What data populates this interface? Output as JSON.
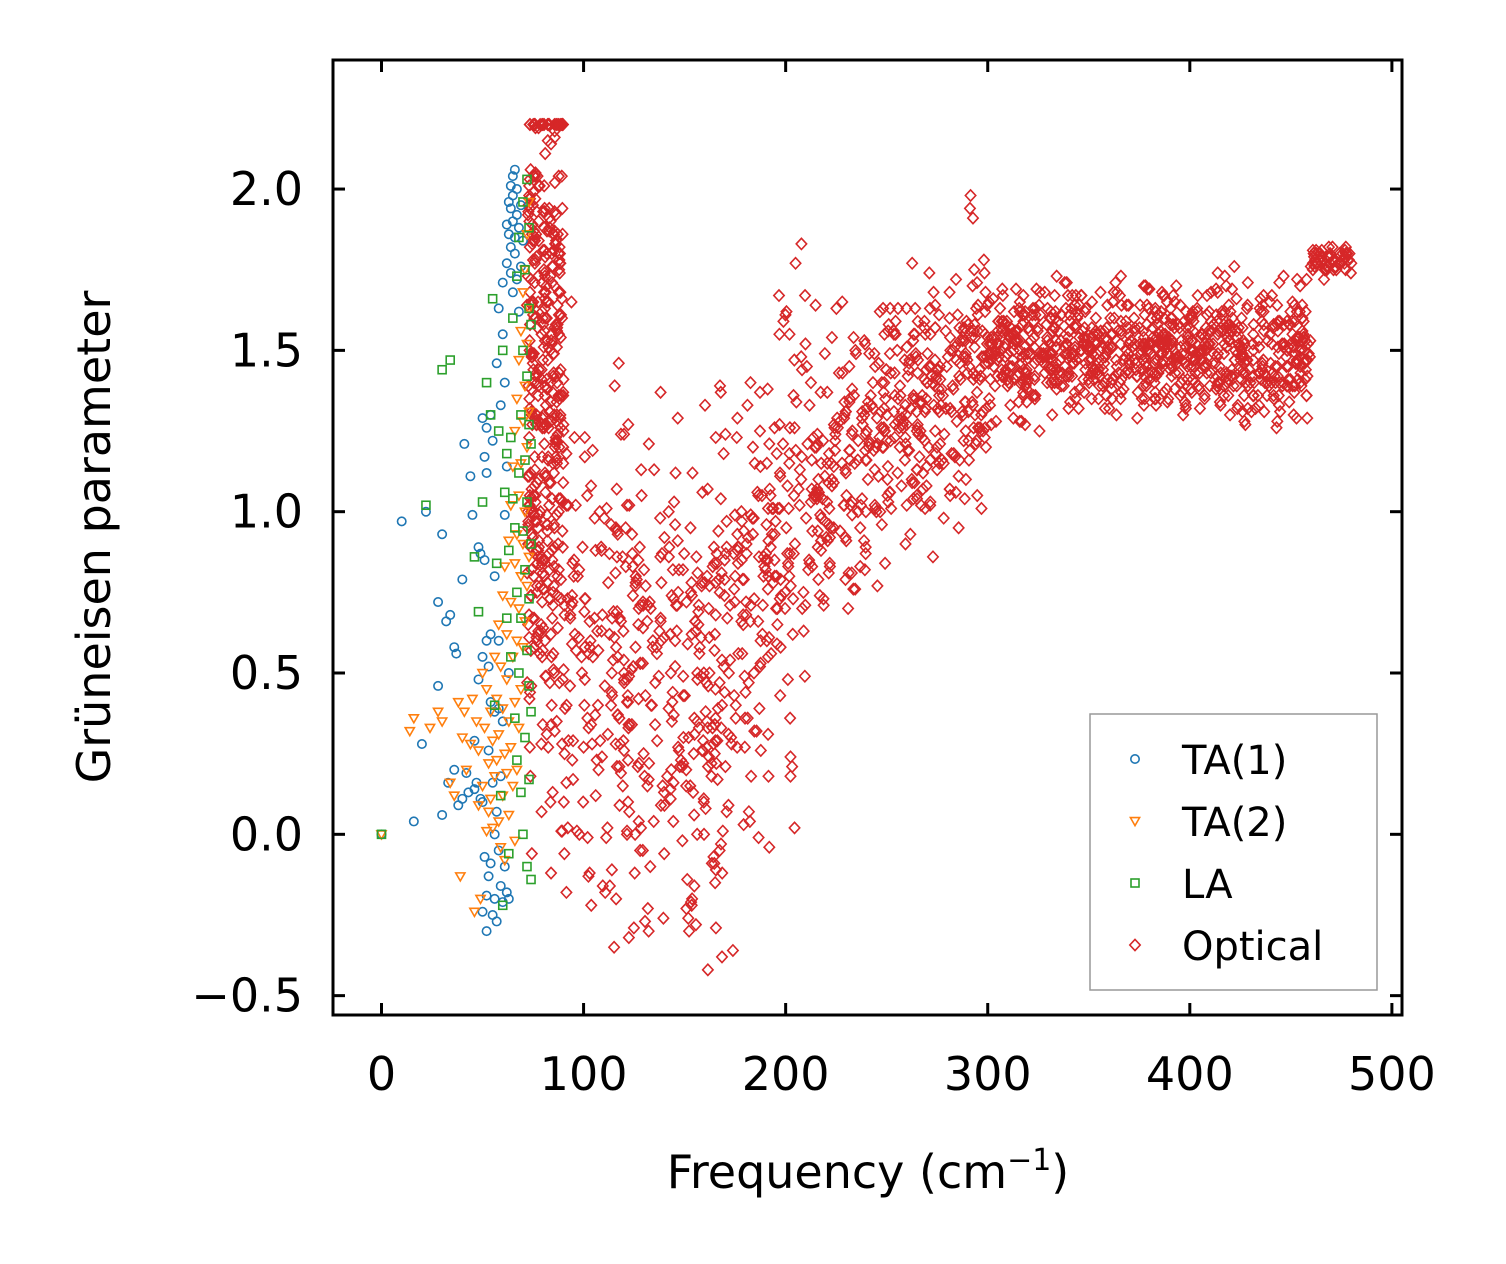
{
  "chart_data": {
    "type": "scatter",
    "title": "",
    "xlabel": "Frequency (cm",
    "xlabel_sup": "−1",
    "xlabel_close": ")",
    "ylabel": "Grüneisen parameter",
    "xlim": [
      -24,
      505
    ],
    "ylim": [
      -0.56,
      2.4
    ],
    "xticks": [
      0,
      100,
      200,
      300,
      400,
      500
    ],
    "xtick_labels": [
      "0",
      "100",
      "200",
      "300",
      "400",
      "500"
    ],
    "yticks": [
      -0.5,
      0.0,
      0.5,
      1.0,
      1.5,
      2.0
    ],
    "ytick_labels": [
      "−0.5",
      "0.0",
      "0.5",
      "1.0",
      "1.5",
      "2.0"
    ],
    "grid": false,
    "legend_position": "lower-right",
    "series": [
      {
        "name": "TA(1)",
        "marker": "circle",
        "color": "#1f77b4",
        "points": [
          [
            0,
            0.0
          ],
          [
            10,
            0.97
          ],
          [
            16,
            0.04
          ],
          [
            20,
            0.28
          ],
          [
            22,
            1.0
          ],
          [
            28,
            0.46
          ],
          [
            28,
            0.72
          ],
          [
            30,
            0.93
          ],
          [
            30,
            0.06
          ],
          [
            32,
            0.66
          ],
          [
            33,
            0.16
          ],
          [
            34,
            0.68
          ],
          [
            36,
            0.58
          ],
          [
            36,
            0.2
          ],
          [
            37,
            0.56
          ],
          [
            38,
            0.09
          ],
          [
            40,
            0.79
          ],
          [
            40,
            0.11
          ],
          [
            41,
            1.21
          ],
          [
            42,
            0.19
          ],
          [
            43,
            0.13
          ],
          [
            44,
            1.11
          ],
          [
            45,
            0.99
          ],
          [
            46,
            0.14
          ],
          [
            46,
            0.29
          ],
          [
            47,
            0.16
          ],
          [
            48,
            0.89
          ],
          [
            48,
            0.48
          ],
          [
            49,
            0.11
          ],
          [
            49,
            0.87
          ],
          [
            50,
            0.1
          ],
          [
            50,
            0.55
          ],
          [
            50,
            1.29
          ],
          [
            50,
            -0.24
          ],
          [
            51,
            1.17
          ],
          [
            51,
            0.85
          ],
          [
            51,
            -0.07
          ],
          [
            52,
            0.6
          ],
          [
            52,
            1.12
          ],
          [
            52,
            1.26
          ],
          [
            52,
            -0.3
          ],
          [
            52,
            -0.19
          ],
          [
            53,
            0.52
          ],
          [
            53,
            -0.13
          ],
          [
            53,
            0.26
          ],
          [
            54,
            1.3
          ],
          [
            54,
            0.41
          ],
          [
            54,
            0.62
          ],
          [
            54,
            -0.09
          ],
          [
            55,
            -0.25
          ],
          [
            55,
            0.16
          ],
          [
            55,
            1.22
          ],
          [
            56,
            0.38
          ],
          [
            56,
            -0.2
          ],
          [
            56,
            0.0
          ],
          [
            56,
            0.8
          ],
          [
            57,
            0.07
          ],
          [
            57,
            1.46
          ],
          [
            57,
            -0.27
          ],
          [
            58,
            0.6
          ],
          [
            58,
            0.39
          ],
          [
            58,
            1.63
          ],
          [
            58,
            -0.05
          ],
          [
            59,
            1.33
          ],
          [
            59,
            -0.16
          ],
          [
            59,
            0.18
          ],
          [
            60,
            1.55
          ],
          [
            60,
            0.35
          ],
          [
            60,
            -0.21
          ],
          [
            60,
            1.71
          ],
          [
            61,
            0.99
          ],
          [
            61,
            -0.1
          ],
          [
            61,
            1.4
          ],
          [
            62,
            1.77
          ],
          [
            62,
            1.14
          ],
          [
            62,
            -0.18
          ],
          [
            62,
            1.89
          ],
          [
            63,
            1.86
          ],
          [
            63,
            0.5
          ],
          [
            63,
            1.96
          ],
          [
            63,
            -0.2
          ],
          [
            64,
            1.82
          ],
          [
            64,
            1.94
          ],
          [
            64,
            2.01
          ],
          [
            64,
            1.74
          ],
          [
            65,
            1.9
          ],
          [
            65,
            2.04
          ],
          [
            65,
            1.68
          ],
          [
            65,
            1.98
          ],
          [
            66,
            1.85
          ],
          [
            66,
            2.06
          ],
          [
            66,
            1.8
          ],
          [
            67,
            1.92
          ],
          [
            67,
            1.72
          ],
          [
            67,
            2.0
          ],
          [
            68,
            1.88
          ],
          [
            68,
            1.62
          ],
          [
            69,
            1.95
          ],
          [
            69,
            1.76
          ],
          [
            70,
            1.84
          ]
        ]
      },
      {
        "name": "TA(2)",
        "marker": "triangle-down",
        "color": "#ff7f0e",
        "points": [
          [
            0,
            0.0
          ],
          [
            14,
            0.32
          ],
          [
            16,
            0.36
          ],
          [
            24,
            0.33
          ],
          [
            28,
            0.38
          ],
          [
            30,
            0.35
          ],
          [
            34,
            0.16
          ],
          [
            36,
            0.12
          ],
          [
            38,
            0.41
          ],
          [
            39,
            -0.13
          ],
          [
            40,
            0.3
          ],
          [
            41,
            0.38
          ],
          [
            42,
            0.2
          ],
          [
            44,
            0.28
          ],
          [
            45,
            0.42
          ],
          [
            46,
            -0.24
          ],
          [
            47,
            0.35
          ],
          [
            48,
            0.09
          ],
          [
            48,
            0.26
          ],
          [
            49,
            -0.2
          ],
          [
            50,
            0.5
          ],
          [
            50,
            0.15
          ],
          [
            51,
            0.33
          ],
          [
            52,
            0.01
          ],
          [
            52,
            0.45
          ],
          [
            53,
            0.22
          ],
          [
            53,
            0.07
          ],
          [
            54,
            0.38
          ],
          [
            54,
            0.11
          ],
          [
            55,
            0.29
          ],
          [
            55,
            0.02
          ],
          [
            56,
            0.55
          ],
          [
            56,
            0.18
          ],
          [
            57,
            0.42
          ],
          [
            57,
            0.23
          ],
          [
            58,
            0.65
          ],
          [
            58,
            0.04
          ],
          [
            58,
            0.31
          ],
          [
            59,
            0.52
          ],
          [
            59,
            -0.04
          ],
          [
            60,
            0.74
          ],
          [
            60,
            0.39
          ],
          [
            60,
            0.12
          ],
          [
            61,
            0.83
          ],
          [
            61,
            0.25
          ],
          [
            61,
            -0.08
          ],
          [
            62,
            0.62
          ],
          [
            62,
            0.48
          ],
          [
            62,
            0.19
          ],
          [
            63,
            0.91
          ],
          [
            63,
            0.35
          ],
          [
            63,
            0.06
          ],
          [
            64,
            1.02
          ],
          [
            64,
            0.72
          ],
          [
            64,
            0.27
          ],
          [
            65,
            1.14
          ],
          [
            65,
            0.55
          ],
          [
            65,
            0.15
          ],
          [
            66,
            1.25
          ],
          [
            66,
            0.84
          ],
          [
            66,
            0.41
          ],
          [
            66,
            -0.02
          ],
          [
            67,
            1.35
          ],
          [
            67,
            0.93
          ],
          [
            67,
            0.6
          ],
          [
            67,
            0.2
          ],
          [
            68,
            1.47
          ],
          [
            68,
            1.05
          ],
          [
            68,
            0.7
          ],
          [
            68,
            0.33
          ],
          [
            69,
            1.56
          ],
          [
            69,
            1.15
          ],
          [
            69,
            0.8
          ],
          [
            69,
            0.45
          ],
          [
            70,
            1.68
          ],
          [
            70,
            1.28
          ],
          [
            70,
            0.9
          ],
          [
            70,
            0.58
          ],
          [
            71,
            1.75
          ],
          [
            71,
            1.39
          ],
          [
            71,
            1.0
          ],
          [
            71,
            0.66
          ],
          [
            72,
            1.86
          ],
          [
            72,
            1.52
          ],
          [
            72,
            1.2
          ],
          [
            72,
            0.77
          ],
          [
            73,
            1.96
          ],
          [
            73,
            1.63
          ],
          [
            73,
            1.31
          ],
          [
            73,
            0.86
          ]
        ]
      },
      {
        "name": "LA",
        "marker": "square",
        "color": "#2ca02c",
        "points": [
          [
            0,
            0.0
          ],
          [
            22,
            1.02
          ],
          [
            30,
            1.44
          ],
          [
            34,
            1.47
          ],
          [
            46,
            0.86
          ],
          [
            48,
            0.69
          ],
          [
            50,
            1.03
          ],
          [
            52,
            1.4
          ],
          [
            54,
            1.3
          ],
          [
            55,
            1.66
          ],
          [
            56,
            0.4
          ],
          [
            57,
            0.84
          ],
          [
            58,
            1.25
          ],
          [
            59,
            0.12
          ],
          [
            60,
            1.5
          ],
          [
            60,
            -0.22
          ],
          [
            61,
            1.06
          ],
          [
            62,
            0.67
          ],
          [
            62,
            1.18
          ],
          [
            63,
            -0.06
          ],
          [
            63,
            0.88
          ],
          [
            64,
            1.23
          ],
          [
            64,
            0.55
          ],
          [
            65,
            1.04
          ],
          [
            65,
            1.6
          ],
          [
            66,
            0.36
          ],
          [
            66,
            0.95
          ],
          [
            67,
            1.73
          ],
          [
            67,
            0.23
          ],
          [
            67,
            0.75
          ],
          [
            68,
            1.12
          ],
          [
            68,
            0.5
          ],
          [
            68,
            1.85
          ],
          [
            69,
            0.13
          ],
          [
            69,
            0.67
          ],
          [
            69,
            1.3
          ],
          [
            70,
            0.94
          ],
          [
            70,
            1.5
          ],
          [
            70,
            0.0
          ],
          [
            70,
            1.96
          ],
          [
            71,
            0.3
          ],
          [
            71,
            0.82
          ],
          [
            71,
            1.16
          ],
          [
            71,
            1.75
          ],
          [
            72,
            -0.1
          ],
          [
            72,
            0.57
          ],
          [
            72,
            1.03
          ],
          [
            72,
            1.42
          ],
          [
            72,
            2.03
          ],
          [
            73,
            0.17
          ],
          [
            73,
            0.46
          ],
          [
            73,
            0.73
          ],
          [
            73,
            1.27
          ],
          [
            73,
            1.63
          ],
          [
            73,
            1.88
          ],
          [
            74,
            -0.14
          ],
          [
            74,
            0.38
          ],
          [
            74,
            0.9
          ],
          [
            74,
            1.21
          ],
          [
            74,
            1.58
          ]
        ]
      },
      {
        "name": "Optical",
        "marker": "diamond",
        "color": "#d62728",
        "points": []
      }
    ]
  },
  "legend": {
    "entries": [
      "TA(1)",
      "TA(2)",
      "LA",
      "Optical"
    ]
  }
}
